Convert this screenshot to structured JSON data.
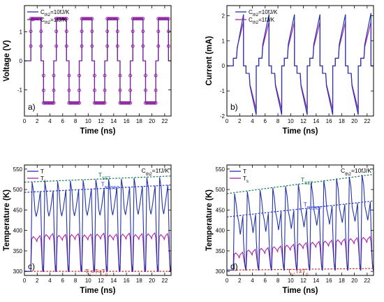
{
  "chart_data": [
    {
      "panel": "a)",
      "type": "line",
      "xlabel": "Time (ns)",
      "ylabel": "Voltage (V)",
      "xlim": [
        0,
        23
      ],
      "ylim": [
        -1.9,
        1.9
      ],
      "xticks": [
        0,
        2,
        4,
        6,
        8,
        10,
        12,
        14,
        16,
        18,
        20,
        22
      ],
      "yticks": [
        -1,
        0,
        1
      ],
      "legend": "top-left",
      "series": [
        {
          "name": "C_th2=10fJ/K",
          "color": "#2233aa",
          "style": "line",
          "segments": [
            {
              "t_start": 1.0,
              "t_end": 2.6,
              "value": 1.45
            },
            {
              "t_start": 3.0,
              "t_end": 4.6,
              "value": -1.45
            },
            {
              "t_start": 5.0,
              "t_end": 6.6,
              "value": 1.45
            },
            {
              "t_start": 7.0,
              "t_end": 8.6,
              "value": -1.45
            },
            {
              "t_start": 9.0,
              "t_end": 10.6,
              "value": 1.45
            },
            {
              "t_start": 11.0,
              "t_end": 12.6,
              "value": -1.45
            },
            {
              "t_start": 13.0,
              "t_end": 14.6,
              "value": 1.45
            },
            {
              "t_start": 15.0,
              "t_end": 16.6,
              "value": -1.45
            },
            {
              "t_start": 17.0,
              "t_end": 18.6,
              "value": 1.45
            },
            {
              "t_start": 19.0,
              "t_end": 20.6,
              "value": -1.45
            },
            {
              "t_start": 21.0,
              "t_end": 22.6,
              "value": 1.45
            }
          ]
        },
        {
          "name": "C_th2=1fJ/K",
          "color": "#8a1a9a",
          "style": "circles",
          "marker_step_ns": 0.2,
          "segments": [
            {
              "t_start": 1.0,
              "t_end": 2.6,
              "value": 1.45
            },
            {
              "t_start": 3.0,
              "t_end": 4.6,
              "value": -1.45
            },
            {
              "t_start": 5.0,
              "t_end": 6.6,
              "value": 1.45
            },
            {
              "t_start": 7.0,
              "t_end": 8.6,
              "value": -1.45
            },
            {
              "t_start": 9.0,
              "t_end": 10.6,
              "value": 1.45
            },
            {
              "t_start": 11.0,
              "t_end": 12.6,
              "value": -1.45
            },
            {
              "t_start": 13.0,
              "t_end": 14.6,
              "value": 1.45
            },
            {
              "t_start": 15.0,
              "t_end": 16.6,
              "value": -1.45
            },
            {
              "t_start": 17.0,
              "t_end": 18.6,
              "value": 1.45
            },
            {
              "t_start": 19.0,
              "t_end": 20.6,
              "value": -1.45
            },
            {
              "t_start": 21.0,
              "t_end": 22.6,
              "value": 1.45
            }
          ]
        }
      ]
    },
    {
      "panel": "b)",
      "type": "line",
      "xlabel": "Time (ns)",
      "ylabel": "Current (mA)",
      "xlim": [
        0,
        23
      ],
      "ylim": [
        -2,
        2.4
      ],
      "xticks": [
        0,
        2,
        4,
        6,
        8,
        10,
        12,
        14,
        16,
        18,
        20,
        22
      ],
      "yticks": [
        -2,
        -1,
        0,
        1,
        2
      ],
      "legend": "top-center",
      "series": [
        {
          "name": "C_th2=10fJ/K",
          "color": "#2233aa",
          "pulses": [
            {
              "t_start": 1.0,
              "t_end": 2.6,
              "i_start": 0.3,
              "i_jump": 0.7,
              "i_end": 2.05
            },
            {
              "t_start": 3.0,
              "t_end": 4.6,
              "i_start": -0.3,
              "i_jump": -0.8,
              "i_end": -1.95
            },
            {
              "t_start": 5.0,
              "t_end": 6.6,
              "i_start": 0.3,
              "i_jump": 0.85,
              "i_end": 2.05
            },
            {
              "t_start": 7.0,
              "t_end": 8.6,
              "i_start": -0.3,
              "i_jump": -0.8,
              "i_end": -1.95
            },
            {
              "t_start": 9.0,
              "t_end": 10.6,
              "i_start": 0.3,
              "i_jump": 0.85,
              "i_end": 2.05
            },
            {
              "t_start": 11.0,
              "t_end": 12.6,
              "i_start": -0.3,
              "i_jump": -0.8,
              "i_end": -1.95
            },
            {
              "t_start": 13.0,
              "t_end": 14.6,
              "i_start": 0.3,
              "i_jump": 0.85,
              "i_end": 2.05
            },
            {
              "t_start": 15.0,
              "t_end": 16.6,
              "i_start": -0.3,
              "i_jump": -0.8,
              "i_end": -1.95
            },
            {
              "t_start": 17.0,
              "t_end": 18.6,
              "i_start": 0.3,
              "i_jump": 0.85,
              "i_end": 2.05
            },
            {
              "t_start": 19.0,
              "t_end": 20.6,
              "i_start": -0.3,
              "i_jump": -0.8,
              "i_end": -1.95
            },
            {
              "t_start": 21.0,
              "t_end": 22.6,
              "i_start": 0.3,
              "i_jump": 0.85,
              "i_end": 2.1
            }
          ]
        },
        {
          "name": "C_th2=1fJ/K",
          "color": "#aa22aa",
          "pulses": [
            {
              "t_start": 1.0,
              "t_end": 2.6,
              "i_start": 0.3,
              "i_jump": 0.75,
              "i_end": 1.75
            },
            {
              "t_start": 3.0,
              "t_end": 4.6,
              "i_start": -0.3,
              "i_jump": -0.75,
              "i_end": -1.75
            },
            {
              "t_start": 5.0,
              "t_end": 6.6,
              "i_start": 0.3,
              "i_jump": 0.75,
              "i_end": 1.75
            },
            {
              "t_start": 7.0,
              "t_end": 8.6,
              "i_start": -0.3,
              "i_jump": -0.75,
              "i_end": -1.75
            },
            {
              "t_start": 9.0,
              "t_end": 10.6,
              "i_start": 0.3,
              "i_jump": 0.75,
              "i_end": 1.75
            },
            {
              "t_start": 11.0,
              "t_end": 12.6,
              "i_start": -0.3,
              "i_jump": -0.75,
              "i_end": -1.75
            },
            {
              "t_start": 13.0,
              "t_end": 14.6,
              "i_start": 0.3,
              "i_jump": 0.75,
              "i_end": 1.75
            },
            {
              "t_start": 15.0,
              "t_end": 16.6,
              "i_start": -0.3,
              "i_jump": -0.75,
              "i_end": -1.75
            },
            {
              "t_start": 17.0,
              "t_end": 18.6,
              "i_start": 0.3,
              "i_jump": 0.75,
              "i_end": 1.75
            },
            {
              "t_start": 19.0,
              "t_end": 20.6,
              "i_start": -0.3,
              "i_jump": -0.75,
              "i_end": -1.75
            },
            {
              "t_start": 21.0,
              "t_end": 22.6,
              "i_start": 0.3,
              "i_jump": 0.75,
              "i_end": 1.75
            }
          ]
        }
      ]
    },
    {
      "panel": "c)",
      "type": "line",
      "xlabel": "Time (ns)",
      "ylabel": "Temperature (K)",
      "xlim": [
        0,
        23
      ],
      "ylim": [
        290,
        560
      ],
      "xticks": [
        0,
        2,
        4,
        6,
        8,
        10,
        12,
        14,
        16,
        18,
        20,
        22
      ],
      "yticks": [
        300,
        350,
        400,
        450,
        500,
        550
      ],
      "annotation": "C_th2=1fJ/K",
      "baseline_label": "T_s=T=T_0",
      "baseline": 300,
      "legend": "top-left",
      "series": [
        {
          "name": "T",
          "color": "#2233aa",
          "pulses": [
            {
              "t_start": 1.0,
              "t_end": 2.6,
              "t_set": 1.35,
              "t_reset": 2.5,
              "peak_set": 518,
              "peak_reset": 496
            },
            {
              "t_start": 3.0,
              "t_end": 4.6,
              "t_set": 3.35,
              "t_reset": 4.5,
              "peak_set": 519,
              "peak_reset": 497
            },
            {
              "t_start": 5.0,
              "t_end": 6.6,
              "t_set": 5.35,
              "t_reset": 6.5,
              "peak_set": 520,
              "peak_reset": 499
            },
            {
              "t_start": 7.0,
              "t_end": 8.6,
              "t_set": 7.35,
              "t_reset": 8.5,
              "peak_set": 521,
              "peak_reset": 500
            },
            {
              "t_start": 9.0,
              "t_end": 10.6,
              "t_set": 9.35,
              "t_reset": 10.5,
              "peak_set": 523,
              "peak_reset": 502
            },
            {
              "t_start": 11.0,
              "t_end": 12.6,
              "t_set": 11.35,
              "t_reset": 12.5,
              "peak_set": 524,
              "peak_reset": 503
            },
            {
              "t_start": 13.0,
              "t_end": 14.6,
              "t_set": 13.35,
              "t_reset": 14.5,
              "peak_set": 525,
              "peak_reset": 505
            },
            {
              "t_start": 15.0,
              "t_end": 16.6,
              "t_set": 15.35,
              "t_reset": 16.5,
              "peak_set": 526,
              "peak_reset": 506
            },
            {
              "t_start": 17.0,
              "t_end": 18.6,
              "t_set": 17.35,
              "t_reset": 18.5,
              "peak_set": 528,
              "peak_reset": 508
            },
            {
              "t_start": 19.0,
              "t_end": 20.6,
              "t_set": 19.35,
              "t_reset": 20.5,
              "peak_set": 529,
              "peak_reset": 509
            },
            {
              "t_start": 21.0,
              "t_end": 22.6,
              "t_set": 21.35,
              "t_reset": 22.5,
              "peak_set": 530,
              "peak_reset": 511
            }
          ]
        },
        {
          "name": "T_s",
          "color": "#aa22aa",
          "pulses": [
            {
              "t_start": 1.0,
              "t_end": 2.6,
              "plateau": 385
            },
            {
              "t_start": 3.0,
              "t_end": 4.6,
              "plateau": 390
            },
            {
              "t_start": 5.0,
              "t_end": 6.6,
              "plateau": 388
            },
            {
              "t_start": 7.0,
              "t_end": 8.6,
              "plateau": 390
            },
            {
              "t_start": 9.0,
              "t_end": 10.6,
              "plateau": 389
            },
            {
              "t_start": 11.0,
              "t_end": 12.6,
              "plateau": 391
            },
            {
              "t_start": 13.0,
              "t_end": 14.6,
              "plateau": 389
            },
            {
              "t_start": 15.0,
              "t_end": 16.6,
              "plateau": 391
            },
            {
              "t_start": 17.0,
              "t_end": 18.6,
              "plateau": 390
            },
            {
              "t_start": 19.0,
              "t_end": 20.6,
              "plateau": 392
            },
            {
              "t_start": 21.0,
              "t_end": 22.6,
              "plateau": 390
            }
          ]
        }
      ],
      "trend_lines": [
        {
          "label": "T_SET",
          "color": "#117755",
          "from": [
            0,
            518
          ],
          "to": [
            23,
            533
          ]
        },
        {
          "label": "T_RESET",
          "color": "#2233dd",
          "from": [
            0,
            493
          ],
          "to": [
            23,
            511
          ]
        },
        {
          "label": "",
          "color": "#cc2222",
          "from": [
            0,
            300
          ],
          "to": [
            23,
            300
          ]
        }
      ]
    },
    {
      "panel": "d)",
      "type": "line",
      "xlabel": "Time (ns)",
      "ylabel": "Temperature (K)",
      "xlim": [
        0,
        23
      ],
      "ylim": [
        290,
        560
      ],
      "xticks": [
        0,
        2,
        4,
        6,
        8,
        10,
        12,
        14,
        16,
        18,
        20,
        22
      ],
      "yticks": [
        300,
        350,
        400,
        450,
        500,
        550
      ],
      "annotation": "C_th2=10fJ/K",
      "baseline_label": "T_s,T≠T_0",
      "baseline": 303,
      "legend": "top-left",
      "series": [
        {
          "name": "T",
          "color": "#2233aa",
          "pulses": [
            {
              "t_start": 1.0,
              "t_end": 2.6,
              "t_set": 1.35,
              "t_reset": 2.5,
              "peak_set": 490,
              "peak_reset": 435
            },
            {
              "t_start": 3.0,
              "t_end": 4.6,
              "t_set": 3.35,
              "t_reset": 4.5,
              "peak_set": 495,
              "peak_reset": 439
            },
            {
              "t_start": 5.0,
              "t_end": 6.6,
              "t_set": 5.35,
              "t_reset": 6.5,
              "peak_set": 499,
              "peak_reset": 442
            },
            {
              "t_start": 7.0,
              "t_end": 8.6,
              "t_set": 7.35,
              "t_reset": 8.5,
              "peak_set": 504,
              "peak_reset": 446
            },
            {
              "t_start": 9.0,
              "t_end": 10.6,
              "t_set": 9.35,
              "t_reset": 10.5,
              "peak_set": 508,
              "peak_reset": 449
            },
            {
              "t_start": 11.0,
              "t_end": 12.6,
              "t_set": 11.35,
              "t_reset": 12.5,
              "peak_set": 513,
              "peak_reset": 453
            },
            {
              "t_start": 13.0,
              "t_end": 14.6,
              "t_set": 13.35,
              "t_reset": 14.5,
              "peak_set": 517,
              "peak_reset": 457
            },
            {
              "t_start": 15.0,
              "t_end": 16.6,
              "t_set": 15.35,
              "t_reset": 16.5,
              "peak_set": 522,
              "peak_reset": 460
            },
            {
              "t_start": 17.0,
              "t_end": 18.6,
              "t_set": 17.35,
              "t_reset": 18.5,
              "peak_set": 527,
              "peak_reset": 464
            },
            {
              "t_start": 19.0,
              "t_end": 20.6,
              "t_set": 19.35,
              "t_reset": 20.5,
              "peak_set": 531,
              "peak_reset": 467
            },
            {
              "t_start": 21.0,
              "t_end": 22.6,
              "t_set": 21.35,
              "t_reset": 22.5,
              "peak_set": 536,
              "peak_reset": 470
            }
          ]
        },
        {
          "name": "T_s",
          "color": "#aa22aa",
          "pulses": [
            {
              "t_start": 1.0,
              "t_end": 2.6,
              "plateau": 345
            },
            {
              "t_start": 3.0,
              "t_end": 4.6,
              "plateau": 352
            },
            {
              "t_start": 5.0,
              "t_end": 6.6,
              "plateau": 356
            },
            {
              "t_start": 7.0,
              "t_end": 8.6,
              "plateau": 360
            },
            {
              "t_start": 9.0,
              "t_end": 10.6,
              "plateau": 364
            },
            {
              "t_start": 11.0,
              "t_end": 12.6,
              "plateau": 368
            },
            {
              "t_start": 13.0,
              "t_end": 14.6,
              "plateau": 371
            },
            {
              "t_start": 15.0,
              "t_end": 16.6,
              "plateau": 374
            },
            {
              "t_start": 17.0,
              "t_end": 18.6,
              "plateau": 377
            },
            {
              "t_start": 19.0,
              "t_end": 20.6,
              "plateau": 380
            },
            {
              "t_start": 21.0,
              "t_end": 22.6,
              "plateau": 383
            }
          ]
        }
      ],
      "trend_lines": [
        {
          "label": "T_SET",
          "color": "#117755",
          "from": [
            0,
            490
          ],
          "to": [
            23,
            537
          ]
        },
        {
          "label": "T_RESET",
          "color": "#2233dd",
          "from": [
            0,
            433
          ],
          "to": [
            23,
            472
          ]
        },
        {
          "label": "",
          "color": "#cc2222",
          "from": [
            0,
            303
          ],
          "to": [
            23,
            307
          ]
        }
      ]
    }
  ]
}
